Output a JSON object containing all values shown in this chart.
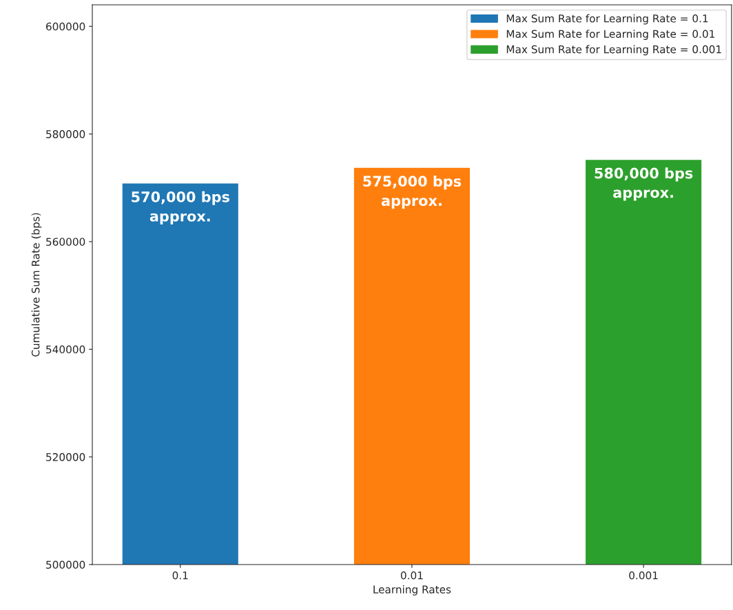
{
  "chart_data": {
    "type": "bar",
    "xlabel": "Learning Rates",
    "ylabel": "Cumulative Sum Rate (bps)",
    "categories": [
      "0.1",
      "0.01",
      "0.001"
    ],
    "series": [
      {
        "name": "Max Sum Rate for Learning Rate = 0.1",
        "color": "#1f77b4",
        "values": [
          570800,
          null,
          null
        ]
      },
      {
        "name": "Max Sum Rate for Learning Rate = 0.01",
        "color": "#ff7f0e",
        "values": [
          null,
          573700,
          null
        ]
      },
      {
        "name": "Max Sum Rate for Learning Rate = 0.001",
        "color": "#2ca02c",
        "values": [
          null,
          null,
          575200
        ]
      }
    ],
    "annotations": [
      "570,000 bps\napprox.",
      "575,000 bps\napprox.",
      "580,000 bps\napprox."
    ],
    "ylim": [
      500000,
      604000
    ],
    "yticks": [
      500000,
      520000,
      540000,
      560000,
      580000,
      600000
    ],
    "grid": false,
    "legend": "top right"
  }
}
